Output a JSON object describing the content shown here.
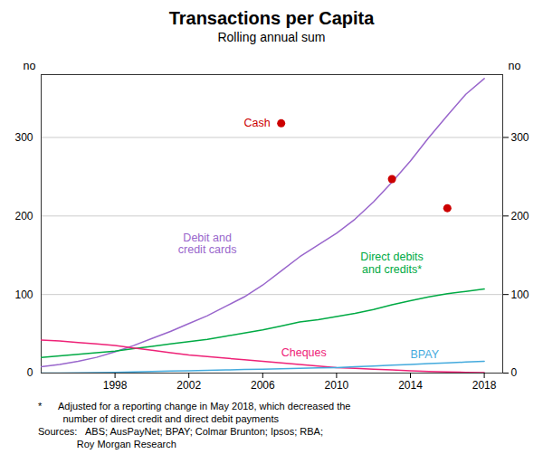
{
  "chart_data": {
    "type": "line",
    "title": "Transactions per Capita",
    "subtitle": "Rolling annual sum",
    "ylabel": "no",
    "y2label": "no",
    "x": [
      1994,
      1995,
      1996,
      1997,
      1998,
      1999,
      2000,
      2001,
      2002,
      2003,
      2004,
      2005,
      2006,
      2007,
      2008,
      2009,
      2010,
      2011,
      2012,
      2013,
      2014,
      2015,
      2016,
      2017,
      2018
    ],
    "series": [
      {
        "name": "Debit and\ncredit cards",
        "color": "#9966CC",
        "type": "line",
        "values": [
          8,
          11,
          15,
          20,
          27,
          35,
          44,
          53,
          63,
          73,
          85,
          97,
          112,
          130,
          148,
          163,
          178,
          196,
          218,
          243,
          270,
          300,
          328,
          355,
          375
        ]
      },
      {
        "name": "Direct debits\nand credits*",
        "color": "#00AA44",
        "type": "line",
        "values": [
          20,
          22,
          24,
          26,
          28,
          31,
          34,
          37,
          40,
          43,
          47,
          51,
          55,
          60,
          65,
          68,
          72,
          76,
          81,
          87,
          92,
          97,
          101,
          104,
          107
        ]
      },
      {
        "name": "Cheques",
        "color": "#EE2277",
        "type": "line",
        "values": [
          42,
          41,
          39,
          37,
          35,
          32,
          29,
          26,
          23,
          21,
          19,
          17,
          15,
          13,
          11,
          9,
          7,
          6,
          5,
          4,
          3,
          2,
          1.5,
          1,
          0.5
        ]
      },
      {
        "name": "BPAY",
        "color": "#44AADD",
        "type": "line",
        "values": [
          0,
          0,
          0.2,
          0.5,
          1,
          1.5,
          2,
          2.5,
          3,
          3.5,
          4,
          4.5,
          5,
          5.5,
          6,
          6.5,
          7,
          8,
          9,
          10,
          11,
          12,
          13,
          14,
          15
        ]
      },
      {
        "name": "Cash",
        "color": "#CC0000",
        "type": "scatter",
        "marker": "circle",
        "values": [
          null,
          null,
          null,
          null,
          null,
          null,
          null,
          null,
          null,
          null,
          null,
          null,
          null,
          318,
          null,
          null,
          null,
          null,
          null,
          247,
          null,
          null,
          210,
          null,
          null
        ]
      }
    ],
    "xlim": [
      1994,
      2019
    ],
    "xticks": [
      1998,
      2002,
      2006,
      2010,
      2014,
      2018
    ],
    "ylim": [
      0,
      380
    ],
    "yticks": [
      0,
      100,
      200,
      300
    ],
    "y2lim": [
      0,
      380
    ],
    "y2ticks": [
      0,
      100,
      200,
      300
    ],
    "grid": true,
    "footnote": [
      "*      Adjusted for a reporting change in May 2018, which decreased the",
      "         number of direct credit and direct debit payments",
      "Sources:   ABS; AusPayNet; BPAY; Colmar Brunton; Ipsos; RBA;",
      "              Roy Morgan Research"
    ]
  }
}
